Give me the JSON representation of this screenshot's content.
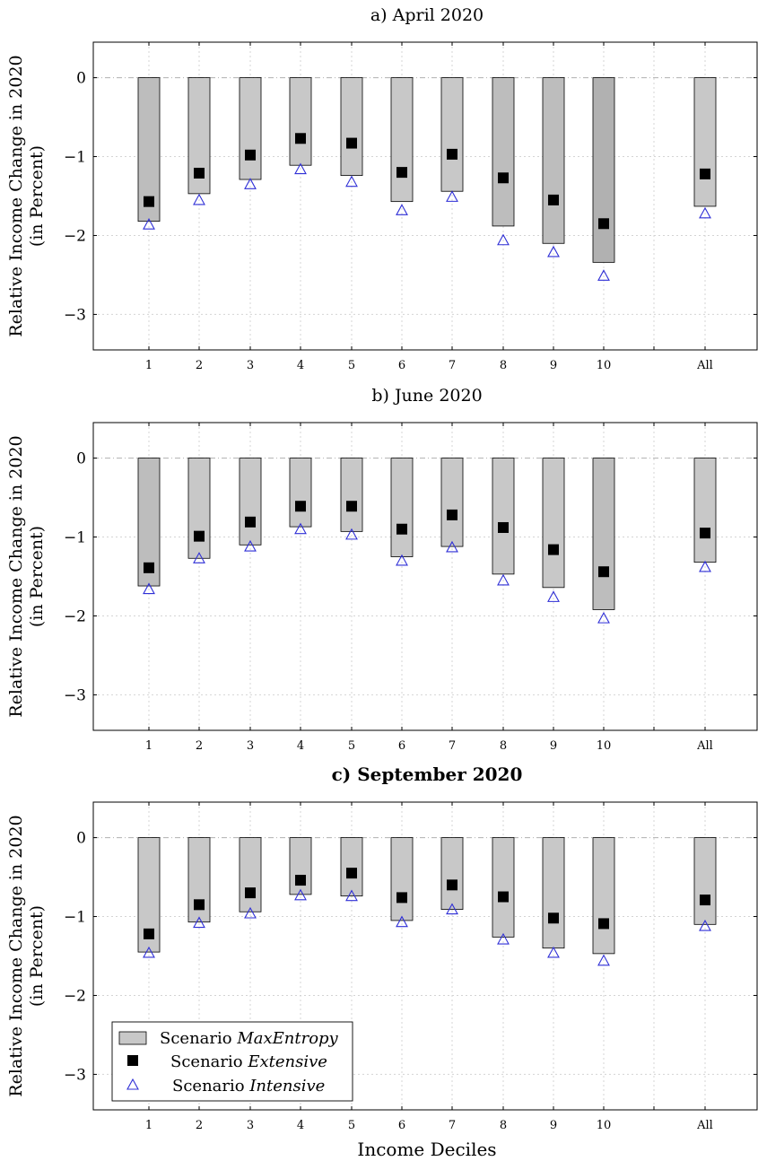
{
  "xlabel": "Income Deciles",
  "legend": [
    {
      "prefix": "Scenario ",
      "name": "MaxEntropy"
    },
    {
      "prefix": "Scenario ",
      "name": "Extensive"
    },
    {
      "prefix": "Scenario ",
      "name": "Intensive"
    }
  ],
  "colors": {
    "bar_light": "#c8c8c8",
    "bar_mid": "#bdbdbd",
    "bar_dark": "#b1b1b1",
    "square": "#000000",
    "triangle": "#2f2fd6"
  },
  "chart_data": [
    {
      "type": "bar",
      "title": "a) April 2020",
      "title_bold": false,
      "ylabel_line1": "Relative Income Change in 2020",
      "ylabel_line2": "(in Percent)",
      "categories": [
        "1",
        "2",
        "3",
        "4",
        "5",
        "6",
        "7",
        "8",
        "9",
        "10",
        "All"
      ],
      "yticks": [
        "0",
        "−1",
        "−2",
        "−3"
      ],
      "ylim": [
        -3.45,
        0.45
      ],
      "grid": true,
      "series": [
        {
          "name": "MaxEntropy",
          "kind": "bar",
          "values": [
            -1.82,
            -1.47,
            -1.29,
            -1.11,
            -1.24,
            -1.57,
            -1.44,
            -1.88,
            -2.1,
            -2.34,
            -1.63
          ]
        },
        {
          "name": "Extensive",
          "kind": "square",
          "values": [
            -1.57,
            -1.21,
            -0.98,
            -0.77,
            -0.83,
            -1.2,
            -0.97,
            -1.27,
            -1.55,
            -1.85,
            -1.22
          ]
        },
        {
          "name": "Intensive",
          "kind": "triangle",
          "values": [
            -1.86,
            -1.55,
            -1.35,
            -1.16,
            -1.32,
            -1.68,
            -1.51,
            -2.06,
            -2.21,
            -2.51,
            -1.72
          ]
        }
      ],
      "bar_shade": [
        "mid",
        "light",
        "light",
        "light",
        "light",
        "light",
        "light",
        "mid",
        "mid",
        "dark",
        "light"
      ]
    },
    {
      "type": "bar",
      "title": "b) June 2020",
      "title_bold": false,
      "ylabel_line1": "Relative Income Change in 2020",
      "ylabel_line2": "(in Percent)",
      "categories": [
        "1",
        "2",
        "3",
        "4",
        "5",
        "6",
        "7",
        "8",
        "9",
        "10",
        "All"
      ],
      "yticks": [
        "0",
        "−1",
        "−2",
        "−3"
      ],
      "ylim": [
        -3.45,
        0.45
      ],
      "grid": true,
      "series": [
        {
          "name": "MaxEntropy",
          "kind": "bar",
          "values": [
            -1.62,
            -1.27,
            -1.1,
            -0.87,
            -0.93,
            -1.25,
            -1.12,
            -1.47,
            -1.64,
            -1.92,
            -1.32
          ]
        },
        {
          "name": "Extensive",
          "kind": "square",
          "values": [
            -1.39,
            -0.99,
            -0.81,
            -0.61,
            -0.61,
            -0.9,
            -0.72,
            -0.88,
            -1.16,
            -1.44,
            -0.95
          ]
        },
        {
          "name": "Intensive",
          "kind": "triangle",
          "values": [
            -1.66,
            -1.27,
            -1.12,
            -0.9,
            -0.97,
            -1.3,
            -1.13,
            -1.55,
            -1.76,
            -2.03,
            -1.38
          ]
        }
      ],
      "bar_shade": [
        "mid",
        "light",
        "light",
        "light",
        "light",
        "light",
        "light",
        "light",
        "light",
        "mid",
        "light"
      ]
    },
    {
      "type": "bar",
      "title": "c) September 2020",
      "title_bold": true,
      "ylabel_line1": "Relative Income Change in 2020",
      "ylabel_line2": "(in Percent)",
      "categories": [
        "1",
        "2",
        "3",
        "4",
        "5",
        "6",
        "7",
        "8",
        "9",
        "10",
        "All"
      ],
      "yticks": [
        "0",
        "−1",
        "−2",
        "−3"
      ],
      "ylim": [
        -3.45,
        0.45
      ],
      "grid": true,
      "legend_position": "bottom-left",
      "series": [
        {
          "name": "MaxEntropy",
          "kind": "bar",
          "values": [
            -1.45,
            -1.07,
            -0.94,
            -0.72,
            -0.74,
            -1.05,
            -0.91,
            -1.26,
            -1.4,
            -1.47,
            -1.1
          ]
        },
        {
          "name": "Extensive",
          "kind": "square",
          "values": [
            -1.22,
            -0.85,
            -0.7,
            -0.54,
            -0.45,
            -0.76,
            -0.6,
            -0.75,
            -1.02,
            -1.09,
            -0.79
          ]
        },
        {
          "name": "Intensive",
          "kind": "triangle",
          "values": [
            -1.46,
            -1.08,
            -0.96,
            -0.73,
            -0.74,
            -1.07,
            -0.91,
            -1.29,
            -1.46,
            -1.56,
            -1.12
          ]
        }
      ],
      "bar_shade": [
        "light",
        "light",
        "light",
        "light",
        "light",
        "light",
        "light",
        "light",
        "light",
        "light",
        "light"
      ]
    }
  ]
}
